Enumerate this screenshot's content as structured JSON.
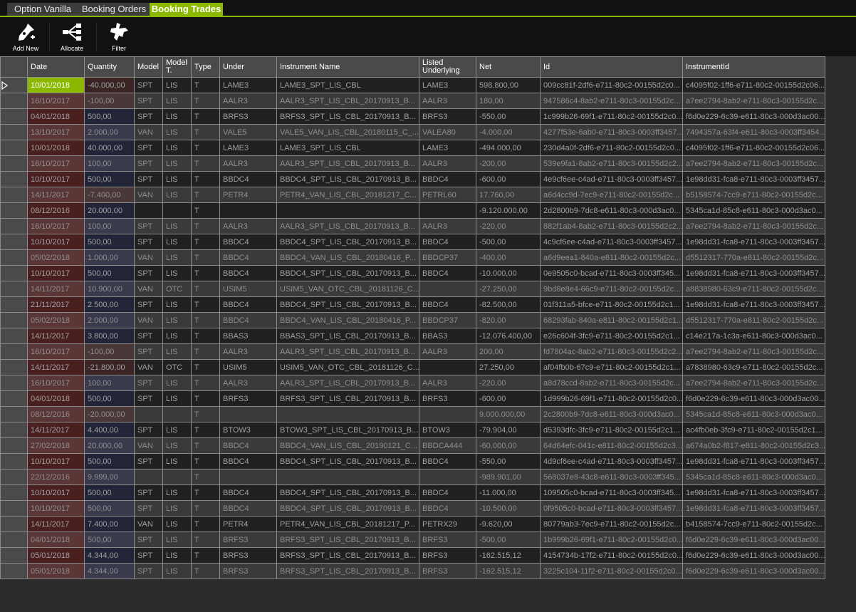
{
  "tabs": [
    {
      "label": "Option Vanilla",
      "active": false
    },
    {
      "label": "Booking Orders",
      "active": false
    },
    {
      "label": "Booking Trades",
      "active": true
    }
  ],
  "toolbar": {
    "add_new": "Add New",
    "allocate": "Allocate",
    "filter": "Filter"
  },
  "colors": {
    "accent": "#8db800"
  },
  "columns": [
    "Date",
    "Quantity",
    "Model",
    "Model T.",
    "Type",
    "Under",
    "Instrument Name",
    "Listed Underlying",
    "Net",
    "Id",
    "InstrumentId"
  ],
  "selected_row": 0,
  "rows": [
    [
      "10/01/2018",
      "-40.000,00",
      "SPT",
      "LIS",
      "T",
      "LAME3",
      "LAME3_SPT_LIS_CBL",
      "LAME3",
      "598.800,00",
      "009cc81f-2df6-e711-80c2-00155d2c0...",
      "c4095f02-1ff6-e711-80c2-00155d2c06..."
    ],
    [
      "16/10/2017",
      "-100,00",
      "SPT",
      "LIS",
      "T",
      "AALR3",
      "AALR3_SPT_LIS_CBL_20170913_B...",
      "AALR3",
      "180,00",
      "947586c4-8ab2-e711-80c3-00155d2c...",
      "a7ee2794-8ab2-e711-80c3-00155d2c..."
    ],
    [
      "04/01/2018",
      "500,00",
      "SPT",
      "LIS",
      "T",
      "BRFS3",
      "BRFS3_SPT_LIS_CBL_20170913_B...",
      "BRFS3",
      "-550,00",
      "1c999b26-69f1-e711-80c2-00155d2c0...",
      "f6d0e229-6c39-e611-80c3-000d3ac00..."
    ],
    [
      "13/10/2017",
      "2.000,00",
      "VAN",
      "LIS",
      "T",
      "VALE5",
      "VALE5_VAN_LIS_CBL_20180115_C_...",
      "VALEA80",
      "-4.000,00",
      "4277f53e-6ab0-e711-80c3-0003ff3457...",
      "7494357a-63f4-e611-80c3-0003ff3454..."
    ],
    [
      "10/01/2018",
      "40.000,00",
      "SPT",
      "LIS",
      "T",
      "LAME3",
      "LAME3_SPT_LIS_CBL",
      "LAME3",
      "-494.000,00",
      "230d4a0f-2df6-e711-80c2-00155d2c0...",
      "c4095f02-1ff6-e711-80c2-00155d2c06..."
    ],
    [
      "16/10/2017",
      "100,00",
      "SPT",
      "LIS",
      "T",
      "AALR3",
      "AALR3_SPT_LIS_CBL_20170913_B...",
      "AALR3",
      "-200,00",
      "539e9fa1-8ab2-e711-80c3-00155d2c2...",
      "a7ee2794-8ab2-e711-80c3-00155d2c..."
    ],
    [
      "10/10/2017",
      "500,00",
      "SPT",
      "LIS",
      "T",
      "BBDC4",
      "BBDC4_SPT_LIS_CBL_20170913_B...",
      "BBDC4",
      "-600,00",
      "4e9cf6ee-c4ad-e711-80c3-0003ff3457...",
      "1e98dd31-fca8-e711-80c3-0003ff3457..."
    ],
    [
      "14/11/2017",
      "-7.400,00",
      "VAN",
      "LIS",
      "T",
      "PETR4",
      "PETR4_VAN_LIS_CBL_20181217_C...",
      "PETRL60",
      "17.760,00",
      "a6d4cc9d-7ec9-e711-80c2-00155d2c...",
      "b5158574-7cc9-e711-80c2-00155d2c..."
    ],
    [
      "08/12/2016",
      "20.000,00",
      "",
      "",
      "T",
      "",
      "",
      "",
      "-9.120.000,00",
      "2d2800b9-7dc8-e611-80c3-000d3ac0...",
      "5345ca1d-85c8-e611-80c3-000d3ac0..."
    ],
    [
      "16/10/2017",
      "100,00",
      "SPT",
      "LIS",
      "T",
      "AALR3",
      "AALR3_SPT_LIS_CBL_20170913_B...",
      "AALR3",
      "-220,00",
      "882f1ab4-8ab2-e711-80c3-00155d2c2...",
      "a7ee2794-8ab2-e711-80c3-00155d2c..."
    ],
    [
      "10/10/2017",
      "500,00",
      "SPT",
      "LIS",
      "T",
      "BBDC4",
      "BBDC4_SPT_LIS_CBL_20170913_B...",
      "BBDC4",
      "-500,00",
      "4c9cf6ee-c4ad-e711-80c3-0003ff3457...",
      "1e98dd31-fca8-e711-80c3-0003ff3457..."
    ],
    [
      "05/02/2018",
      "1.000,00",
      "VAN",
      "LIS",
      "T",
      "BBDC4",
      "BBDC4_VAN_LIS_CBL_20180416_P...",
      "BBDCP37",
      "-400,00",
      "a6d9eea1-840a-e811-80c2-00155d2c...",
      "d5512317-770a-e811-80c2-00155d2c..."
    ],
    [
      "10/10/2017",
      "500,00",
      "SPT",
      "LIS",
      "T",
      "BBDC4",
      "BBDC4_SPT_LIS_CBL_20170913_B...",
      "BBDC4",
      "-10.000,00",
      "0e9505c0-bcad-e711-80c3-0003ff345...",
      "1e98dd31-fca8-e711-80c3-0003ff3457..."
    ],
    [
      "14/11/2017",
      "10.900,00",
      "VAN",
      "OTC",
      "T",
      "USIM5",
      "USIM5_VAN_OTC_CBL_20181126_C...",
      "",
      "-27.250,00",
      "9bd8e8e4-66c9-e711-80c2-00155d2c...",
      "a8838980-63c9-e711-80c2-00155d2c..."
    ],
    [
      "21/11/2017",
      "2.500,00",
      "SPT",
      "LIS",
      "T",
      "BBDC4",
      "BBDC4_SPT_LIS_CBL_20170913_B...",
      "BBDC4",
      "-82.500,00",
      "01f311a5-bfce-e711-80c2-00155d2c1...",
      "1e98dd31-fca8-e711-80c3-0003ff3457..."
    ],
    [
      "05/02/2018",
      "2.000,00",
      "VAN",
      "LIS",
      "T",
      "BBDC4",
      "BBDC4_VAN_LIS_CBL_20180416_P...",
      "BBDCP37",
      "-820,00",
      "68293fab-840a-e811-80c2-00155d2c1...",
      "d5512317-770a-e811-80c2-00155d2c..."
    ],
    [
      "14/11/2017",
      "3.800,00",
      "SPT",
      "LIS",
      "T",
      "BBAS3",
      "BBAS3_SPT_LIS_CBL_20170913_B...",
      "BBAS3",
      "-12.076.400,00",
      "e26c604f-3fc9-e711-80c2-00155d2c1...",
      "c14e217a-1c3a-e611-80c3-000d3ac0..."
    ],
    [
      "16/10/2017",
      "-100,00",
      "SPT",
      "LIS",
      "T",
      "AALR3",
      "AALR3_SPT_LIS_CBL_20170913_B...",
      "AALR3",
      "200,00",
      "fd7804ac-8ab2-e711-80c3-00155d2c2...",
      "a7ee2794-8ab2-e711-80c3-00155d2c..."
    ],
    [
      "14/11/2017",
      "-21.800,00",
      "VAN",
      "OTC",
      "T",
      "USIM5",
      "USIM5_VAN_OTC_CBL_20181126_C...",
      "",
      "27.250,00",
      "af04fb0b-67c9-e711-80c2-00155d2c1...",
      "a7838980-63c9-e711-80c2-00155d2c..."
    ],
    [
      "16/10/2017",
      "100,00",
      "SPT",
      "LIS",
      "T",
      "AALR3",
      "AALR3_SPT_LIS_CBL_20170913_B...",
      "AALR3",
      "-220,00",
      "a8d78ccd-8ab2-e711-80c3-00155d2c...",
      "a7ee2794-8ab2-e711-80c3-00155d2c..."
    ],
    [
      "04/01/2018",
      "500,00",
      "SPT",
      "LIS",
      "T",
      "BRFS3",
      "BRFS3_SPT_LIS_CBL_20170913_B...",
      "BRFS3",
      "-600,00",
      "1d999b26-69f1-e711-80c2-00155d2c0...",
      "f6d0e229-6c39-e611-80c3-000d3ac00..."
    ],
    [
      "08/12/2016",
      "-20.000,00",
      "",
      "",
      "T",
      "",
      "",
      "",
      "9.000.000,00",
      "2c2800b9-7dc8-e611-80c3-000d3ac0...",
      "5345ca1d-85c8-e611-80c3-000d3ac0..."
    ],
    [
      "14/11/2017",
      "4.400,00",
      "SPT",
      "LIS",
      "T",
      "BTOW3",
      "BTOW3_SPT_LIS_CBL_20170913_B...",
      "BTOW3",
      "-79.904,00",
      "d5393dfc-3fc9-e711-80c2-00155d2c1...",
      "ac4fb0eb-3fc9-e711-80c2-00155d2c1..."
    ],
    [
      "27/02/2018",
      "20.000,00",
      "VAN",
      "LIS",
      "T",
      "BBDC4",
      "BBDC4_VAN_LIS_CBL_20190121_C...",
      "BBDCA444",
      "-60.000,00",
      "64d64efc-041c-e811-80c2-00155d2c3...",
      "a674a0b2-f817-e811-80c2-00155d2c3..."
    ],
    [
      "10/10/2017",
      "500,00",
      "SPT",
      "LIS",
      "T",
      "BBDC4",
      "BBDC4_SPT_LIS_CBL_20170913_B...",
      "BBDC4",
      "-550,00",
      "4d9cf6ee-c4ad-e711-80c3-0003ff3457...",
      "1e98dd31-fca8-e711-80c3-0003ff3457..."
    ],
    [
      "22/12/2016",
      "9.999,00",
      "",
      "",
      "T",
      "",
      "",
      "",
      "-989.901,00",
      "568037e8-43c8-e611-80c3-0003ff345...",
      "5345ca1d-85c8-e611-80c3-000d3ac0..."
    ],
    [
      "10/10/2017",
      "500,00",
      "SPT",
      "LIS",
      "T",
      "BBDC4",
      "BBDC4_SPT_LIS_CBL_20170913_B...",
      "BBDC4",
      "-11.000,00",
      "109505c0-bcad-e711-80c3-0003ff345...",
      "1e98dd31-fca8-e711-80c3-0003ff3457..."
    ],
    [
      "10/10/2017",
      "500,00",
      "SPT",
      "LIS",
      "T",
      "BBDC4",
      "BBDC4_SPT_LIS_CBL_20170913_B...",
      "BBDC4",
      "-10.500,00",
      "0f9505c0-bcad-e711-80c3-0003ff3457...",
      "1e98dd31-fca8-e711-80c3-0003ff3457..."
    ],
    [
      "14/11/2017",
      "7.400,00",
      "VAN",
      "LIS",
      "T",
      "PETR4",
      "PETR4_VAN_LIS_CBL_20181217_P...",
      "PETRX29",
      "-9.620,00",
      "80779ab3-7ec9-e711-80c2-00155d2c...",
      "b4158574-7cc9-e711-80c2-00155d2c..."
    ],
    [
      "04/01/2018",
      "500,00",
      "SPT",
      "LIS",
      "T",
      "BRFS3",
      "BRFS3_SPT_LIS_CBL_20170913_B...",
      "BRFS3",
      "-500,00",
      "1b999b26-69f1-e711-80c2-00155d2c0...",
      "f6d0e229-6c39-e611-80c3-000d3ac00..."
    ],
    [
      "05/01/2018",
      "4.344,00",
      "SPT",
      "LIS",
      "T",
      "BRFS3",
      "BRFS3_SPT_LIS_CBL_20170913_B...",
      "BRFS3",
      "-162.515,12",
      "4154734b-17f2-e711-80c2-00155d2c0...",
      "f6d0e229-6c39-e611-80c3-000d3ac00..."
    ],
    [
      "05/01/2018",
      "4.344,00",
      "SPT",
      "LIS",
      "T",
      "BRFS3",
      "BRFS3_SPT_LIS_CBL_20170913_B...",
      "BRFS3",
      "-162.515,12",
      "3225c104-11f2-e711-80c2-00155d2c0...",
      "f6d0e229-6c39-e611-80c3-000d3ac00..."
    ]
  ]
}
